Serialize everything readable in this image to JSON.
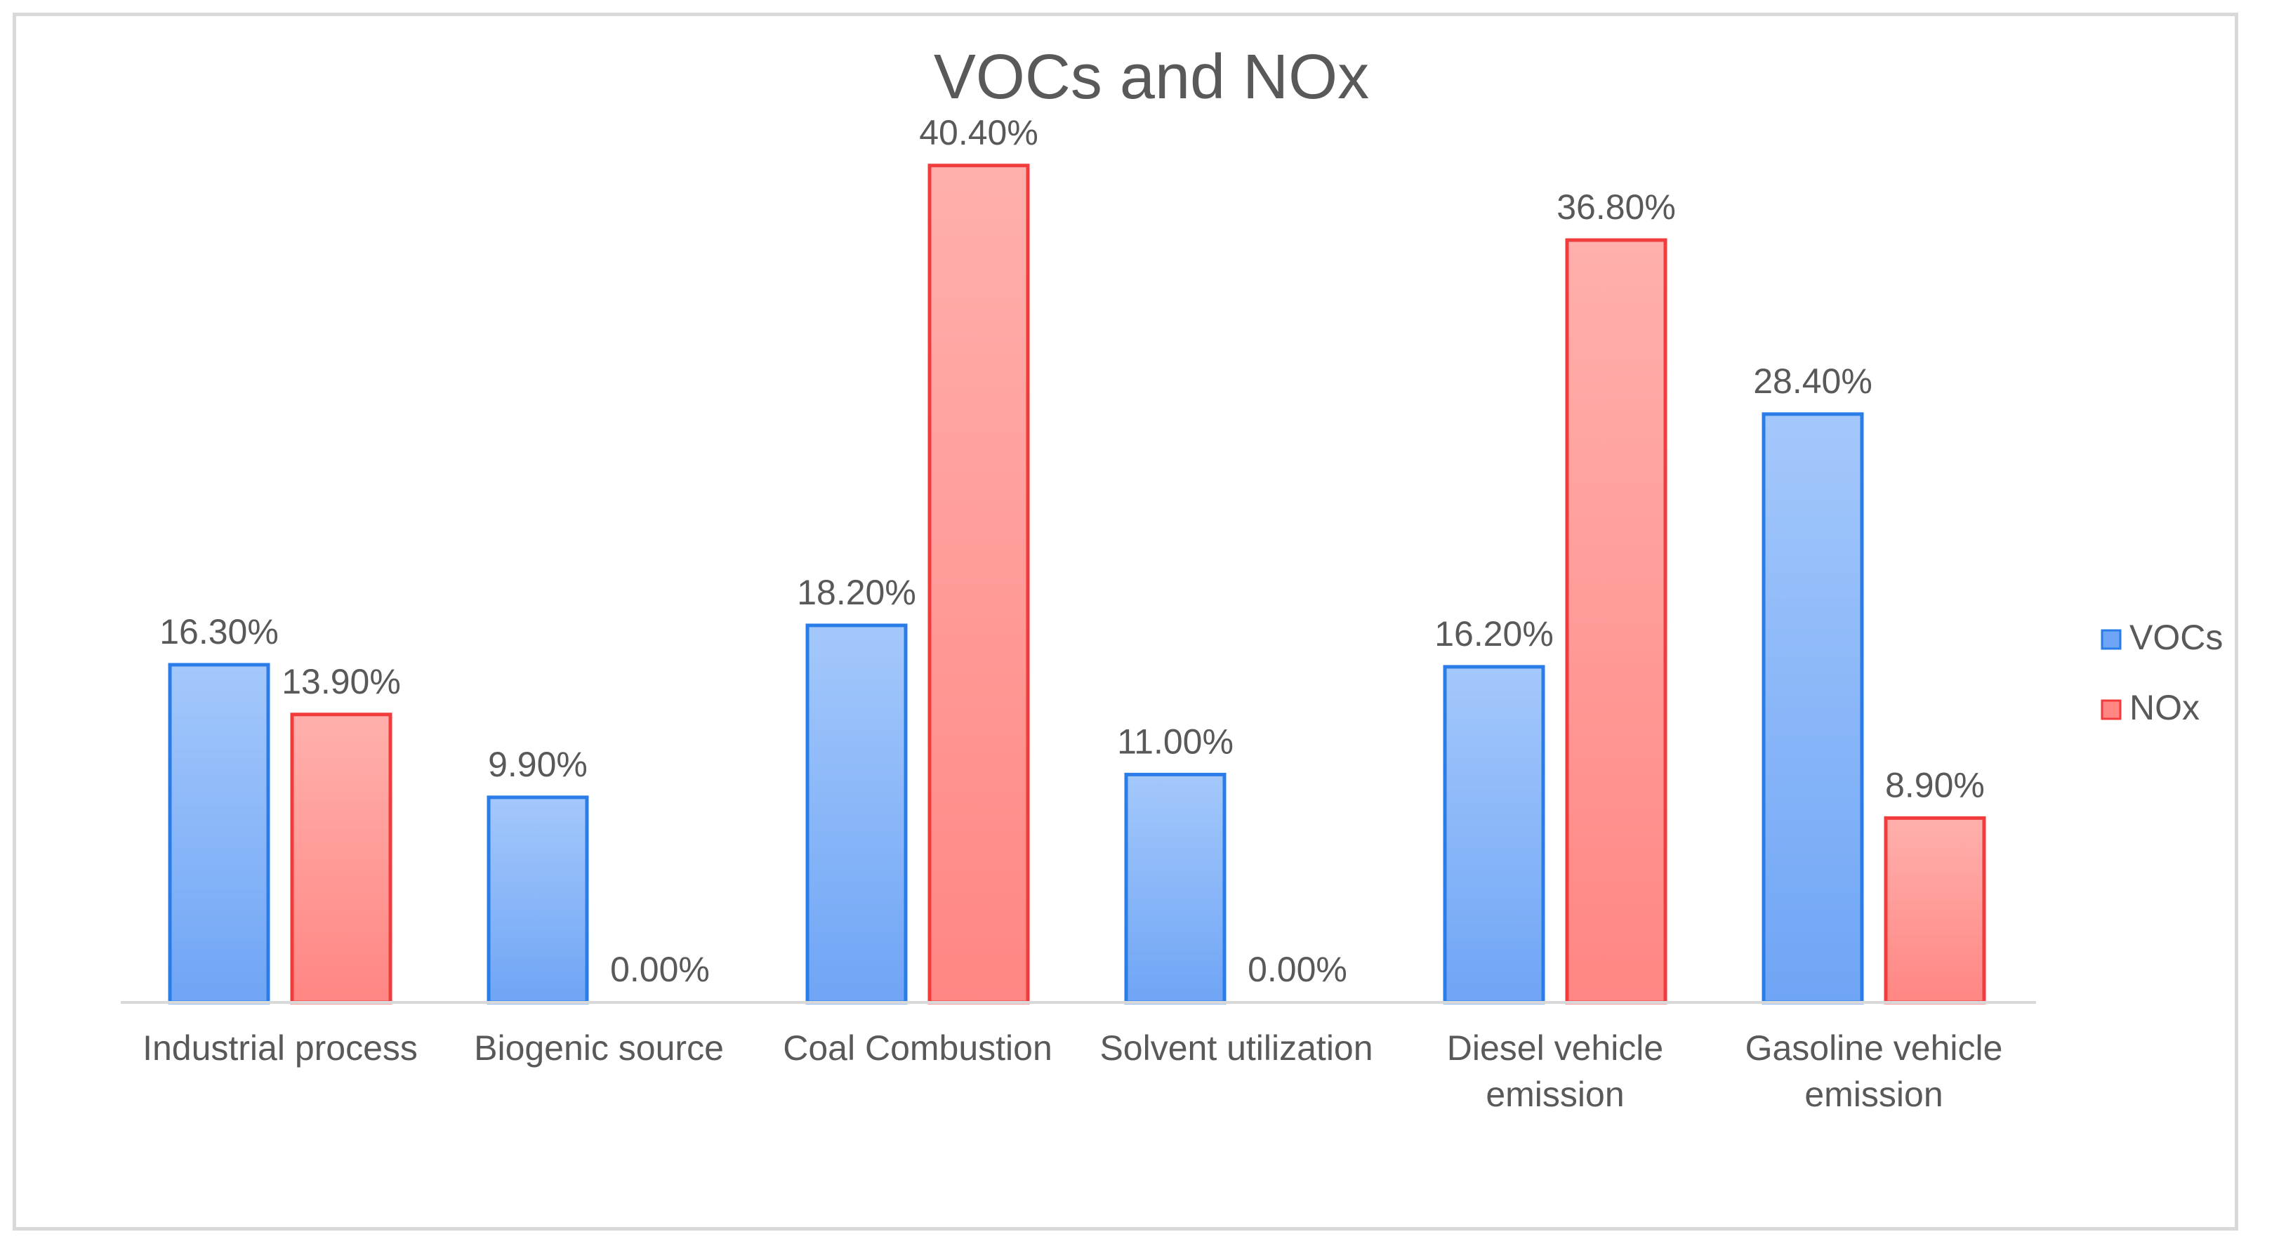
{
  "chart_data": {
    "type": "bar",
    "title": "VOCs and NOx",
    "xlabel": "",
    "ylabel": "",
    "ylim": [
      0,
      45
    ],
    "grid": false,
    "legend_position": "right",
    "categories": [
      [
        "Industrial process"
      ],
      [
        "Biogenic source"
      ],
      [
        "Coal Combustion"
      ],
      [
        "Solvent utilization"
      ],
      [
        "Diesel vehicle",
        "emission"
      ],
      [
        "Gasoline vehicle",
        "emission"
      ]
    ],
    "series": [
      {
        "name": "VOCs",
        "values": [
          16.3,
          9.9,
          18.2,
          11.0,
          16.2,
          28.4
        ],
        "labels": [
          "16.30%",
          "9.90%",
          "18.20%",
          "11.00%",
          "16.20%",
          "28.40%"
        ],
        "fill_top": "#a4c8fb",
        "fill_bottom": "#6fa5f5",
        "stroke": "#2a7ce8"
      },
      {
        "name": "NOx",
        "values": [
          13.9,
          0.0,
          40.4,
          0.0,
          36.8,
          8.9
        ],
        "labels": [
          "13.90%",
          "0.00%",
          "40.40%",
          "0.00%",
          "36.80%",
          "8.90%"
        ],
        "fill_top": "#ffb0ac",
        "fill_bottom": "#ff8683",
        "stroke": "#f03c3c"
      }
    ]
  }
}
